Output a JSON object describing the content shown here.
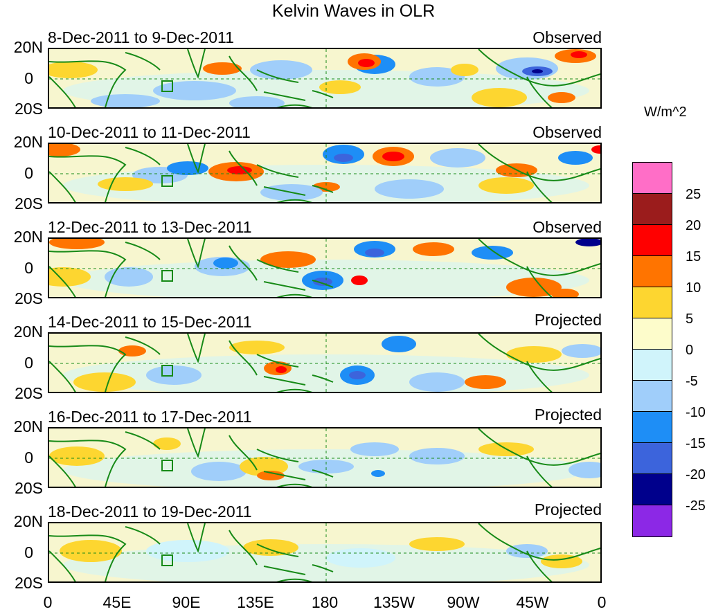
{
  "title": "Kelvin Waves in OLR",
  "units": "W/m^2",
  "y_ticks": [
    "20N",
    "0",
    "20S"
  ],
  "x_ticks": [
    "0",
    "45E",
    "90E",
    "135E",
    "180",
    "135W",
    "90W",
    "45W",
    "0"
  ],
  "panels": [
    {
      "dates": "8-Dec-2011 to 9-Dec-2011",
      "kind": "Observed"
    },
    {
      "dates": "10-Dec-2011 to 11-Dec-2011",
      "kind": "Observed"
    },
    {
      "dates": "12-Dec-2011 to 13-Dec-2011",
      "kind": "Observed"
    },
    {
      "dates": "14-Dec-2011 to 15-Dec-2011",
      "kind": "Projected"
    },
    {
      "dates": "16-Dec-2011 to 17-Dec-2011",
      "kind": "Projected"
    },
    {
      "dates": "18-Dec-2011 to 19-Dec-2011",
      "kind": "Projected"
    }
  ],
  "legend": {
    "labels": [
      "25",
      "20",
      "15",
      "10",
      "5",
      "0",
      "-5",
      "-10",
      "-15",
      "-20",
      "-25"
    ],
    "colors": [
      "#ff6ec7",
      "#9b1c1c",
      "#ff0000",
      "#ff7400",
      "#fdd630",
      "#fdfccb",
      "#d0f4fb",
      "#a0cefa",
      "#1e8ef6",
      "#3c64dc",
      "#00008c",
      "#8c28e6"
    ]
  },
  "anomaly_colors": {
    "pos1": "#fdd630",
    "pos2": "#ff7400",
    "pos3": "#ff0000",
    "neg1": "#d0f4fb",
    "neg2": "#a0cefa",
    "neg3": "#1e8ef6",
    "neg4": "#3c64dc",
    "neg5": "#00008c",
    "coast": "#178a17"
  }
}
